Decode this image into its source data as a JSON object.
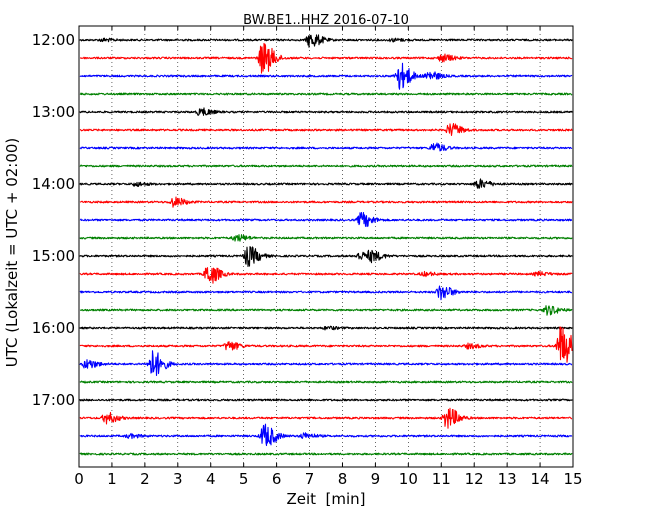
{
  "chart_data": {
    "type": "line",
    "title": "BW.BE1..HHZ 2016-07-10",
    "xlabel": "Zeit  [min]",
    "ylabel": "UTC (Lokalzeit = UTC + 02:00)",
    "xlim": [
      0,
      15
    ],
    "x_ticks": [
      "0",
      "1",
      "2",
      "3",
      "4",
      "5",
      "6",
      "7",
      "8",
      "9",
      "10",
      "11",
      "12",
      "13",
      "14",
      "15"
    ],
    "y_ticks": [
      "12:00",
      "13:00",
      "14:00",
      "15:00",
      "16:00",
      "17:00"
    ],
    "grid": "dotted vertical",
    "colors": [
      "#000000",
      "#ff0000",
      "#0000ff",
      "#008000"
    ],
    "trace_start_times": [
      "12:00",
      "12:15",
      "12:30",
      "12:45",
      "13:00",
      "13:15",
      "13:30",
      "13:45",
      "14:00",
      "14:15",
      "14:30",
      "14:45",
      "15:00",
      "15:15",
      "15:30",
      "15:45",
      "16:00",
      "16:15",
      "16:30",
      "16:45",
      "17:00",
      "17:15",
      "17:30",
      "17:45"
    ],
    "events": [
      {
        "trace": "12:00",
        "minute": 7.0,
        "amplitude": 0.8
      },
      {
        "trace": "12:00",
        "minute": 0.7,
        "amplitude": 0.15
      },
      {
        "trace": "12:00",
        "minute": 9.5,
        "amplitude": 0.15
      },
      {
        "trace": "12:15",
        "minute": 5.55,
        "amplitude": 1.8
      },
      {
        "trace": "12:15",
        "minute": 11.0,
        "amplitude": 0.4
      },
      {
        "trace": "12:30",
        "minute": 9.7,
        "amplitude": 1.5
      },
      {
        "trace": "12:30",
        "minute": 10.6,
        "amplitude": 0.5
      },
      {
        "trace": "13:00",
        "minute": 3.7,
        "amplitude": 0.15
      },
      {
        "trace": "13:00",
        "minute": 3.65,
        "amplitude": 0.25
      },
      {
        "trace": "13:15",
        "minute": 11.25,
        "amplitude": 0.7
      },
      {
        "trace": "13:30",
        "minute": 10.75,
        "amplitude": 0.5
      },
      {
        "trace": "14:00",
        "minute": 12.1,
        "amplitude": 0.5
      },
      {
        "trace": "14:00",
        "minute": 1.7,
        "amplitude": 0.2
      },
      {
        "trace": "14:15",
        "minute": 2.85,
        "amplitude": 0.5
      },
      {
        "trace": "14:30",
        "minute": 8.55,
        "amplitude": 0.8
      },
      {
        "trace": "14:45",
        "minute": 4.75,
        "amplitude": 0.35
      },
      {
        "trace": "15:00",
        "minute": 5.1,
        "amplitude": 1.1
      },
      {
        "trace": "15:00",
        "minute": 8.85,
        "amplitude": 0.5
      },
      {
        "trace": "15:00",
        "minute": 8.5,
        "amplitude": 0.4
      },
      {
        "trace": "15:15",
        "minute": 3.9,
        "amplitude": 1.1
      },
      {
        "trace": "15:15",
        "minute": 10.45,
        "amplitude": 0.2
      },
      {
        "trace": "15:15",
        "minute": 13.9,
        "amplitude": 0.2
      },
      {
        "trace": "15:30",
        "minute": 10.95,
        "amplitude": 0.8
      },
      {
        "trace": "15:45",
        "minute": 14.2,
        "amplitude": 0.5
      },
      {
        "trace": "16:00",
        "minute": 7.5,
        "amplitude": 0.15
      },
      {
        "trace": "16:15",
        "minute": 4.5,
        "amplitude": 0.5
      },
      {
        "trace": "16:15",
        "minute": 14.6,
        "amplitude": 2.3
      },
      {
        "trace": "16:15",
        "minute": 11.8,
        "amplitude": 0.25
      },
      {
        "trace": "16:30",
        "minute": 2.2,
        "amplitude": 1.5
      },
      {
        "trace": "16:30",
        "minute": 0.2,
        "amplitude": 0.5
      },
      {
        "trace": "17:15",
        "minute": 0.8,
        "amplitude": 0.6
      },
      {
        "trace": "17:15",
        "minute": 11.15,
        "amplitude": 1.2
      },
      {
        "trace": "17:30",
        "minute": 5.6,
        "amplitude": 1.3
      },
      {
        "trace": "17:30",
        "minute": 1.5,
        "amplitude": 0.2
      },
      {
        "trace": "17:30",
        "minute": 6.8,
        "amplitude": 0.3
      }
    ]
  }
}
